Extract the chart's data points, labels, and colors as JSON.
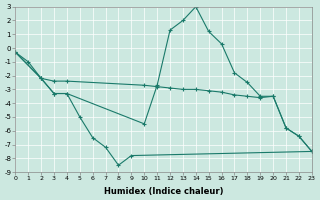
{
  "xlabel": "Humidex (Indice chaleur)",
  "ylabel": "",
  "xlim": [
    0,
    23
  ],
  "ylim": [
    -9,
    3
  ],
  "xticks": [
    0,
    1,
    2,
    3,
    4,
    5,
    6,
    7,
    8,
    9,
    10,
    11,
    12,
    13,
    14,
    15,
    16,
    17,
    18,
    19,
    20,
    21,
    22,
    23
  ],
  "yticks": [
    3,
    2,
    1,
    0,
    -1,
    -2,
    -3,
    -4,
    -5,
    -6,
    -7,
    -8,
    -9
  ],
  "bg_color": "#cce8e0",
  "line_color": "#1a7a6a",
  "lines": [
    {
      "x": [
        0,
        1,
        2,
        3,
        4,
        5,
        6,
        7,
        8,
        9,
        23
      ],
      "y": [
        -0.3,
        -1.0,
        -2.2,
        -3.3,
        -3.3,
        -5.0,
        -6.5,
        -7.2,
        -8.5,
        -7.8,
        -7.5
      ]
    },
    {
      "x": [
        0,
        2,
        3,
        4,
        10,
        11,
        12,
        13,
        14,
        15,
        16,
        17,
        18,
        19,
        20,
        21,
        22,
        23
      ],
      "y": [
        -0.3,
        -2.2,
        -2.4,
        -2.4,
        -2.7,
        -2.8,
        -2.9,
        -3.0,
        -3.0,
        -3.1,
        -3.2,
        -3.4,
        -3.5,
        -3.6,
        -3.5,
        -5.8,
        -6.4,
        -7.5
      ]
    },
    {
      "x": [
        0,
        2,
        3,
        4,
        10,
        11,
        12,
        13,
        14,
        15,
        16,
        17,
        18,
        19,
        20,
        21,
        22,
        23
      ],
      "y": [
        -0.3,
        -2.2,
        -3.3,
        -3.3,
        -5.5,
        -2.7,
        1.3,
        2.0,
        3.0,
        1.2,
        0.3,
        -1.8,
        -2.5,
        -3.5,
        -3.5,
        -5.8,
        -6.4,
        -7.5
      ]
    }
  ],
  "figsize": [
    3.2,
    2.0
  ],
  "dpi": 100
}
